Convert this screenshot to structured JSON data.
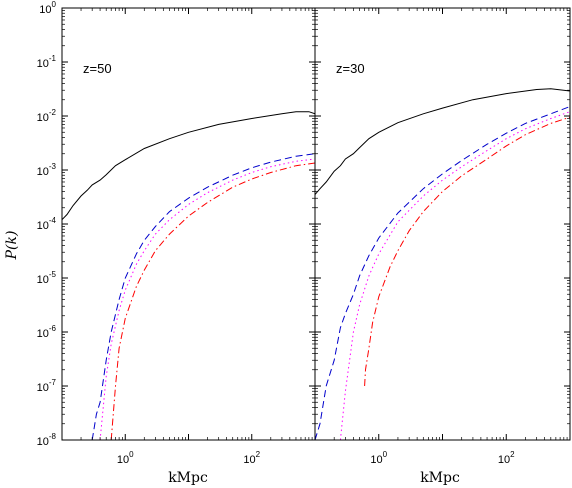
{
  "chart_data": {
    "type": "line",
    "xscale": "log",
    "yscale": "log",
    "xlim": [
      0.1,
      1000
    ],
    "ylim": [
      1e-08,
      1
    ],
    "xlabel": "kMpc",
    "ylabel": "P(k)",
    "x_ticks": [
      {
        "base": "10",
        "exp": "0"
      },
      {
        "base": "10",
        "exp": "2"
      }
    ],
    "y_ticks": [
      {
        "base": "10",
        "exp": "0"
      },
      {
        "base": "10",
        "exp": "-1"
      },
      {
        "base": "10",
        "exp": "-2"
      },
      {
        "base": "10",
        "exp": "-3"
      },
      {
        "base": "10",
        "exp": "-4"
      },
      {
        "base": "10",
        "exp": "-5"
      },
      {
        "base": "10",
        "exp": "-6"
      },
      {
        "base": "10",
        "exp": "-7"
      },
      {
        "base": "10",
        "exp": "-8"
      }
    ],
    "grid": false,
    "panels": [
      {
        "annotation": "z=50",
        "series": [
          {
            "style": "solid",
            "color": "#000000",
            "x": [
              0.1,
              0.12,
              0.15,
              0.2,
              0.25,
              0.3,
              0.4,
              0.5,
              0.7,
              1,
              2,
              5,
              10,
              30,
              100,
              300,
              500,
              800,
              1000
            ],
            "y": [
              0.00012,
              0.00015,
              0.00022,
              0.00033,
              0.00042,
              0.00053,
              0.00065,
              0.00082,
              0.0012,
              0.00155,
              0.0025,
              0.0038,
              0.005,
              0.007,
              0.009,
              0.011,
              0.012,
              0.012,
              0.011
            ]
          },
          {
            "style": "dashed",
            "color": "#0000cc",
            "x": [
              0.3,
              0.35,
              0.4,
              0.5,
              0.6,
              0.8,
              1,
              1.5,
              2,
              3,
              5,
              10,
              20,
              50,
              100,
              200,
              500,
              1000
            ],
            "y": [
              1e-08,
              3e-08,
              5e-08,
              3e-07,
              1e-06,
              4e-06,
              1e-05,
              2.8e-05,
              5e-05,
              9e-05,
              0.00017,
              0.0003,
              0.00048,
              0.0008,
              0.0011,
              0.0014,
              0.0018,
              0.002
            ]
          },
          {
            "style": "dotted",
            "color": "#ff00ff",
            "x": [
              0.4,
              0.5,
              0.6,
              0.8,
              1,
              1.5,
              2,
              3,
              5,
              10,
              20,
              50,
              100,
              200,
              500,
              1000
            ],
            "y": [
              1e-08,
              1.5e-07,
              6e-07,
              2.5e-06,
              6e-06,
              1.8e-05,
              3.2e-05,
              6.5e-05,
              0.00012,
              0.00023,
              0.00038,
              0.00065,
              0.0009,
              0.00115,
              0.00145,
              0.0016
            ]
          },
          {
            "style": "dashdot",
            "color": "#ff0000",
            "x": [
              0.6,
              0.7,
              0.8,
              1,
              1.5,
              2,
              3,
              5,
              10,
              20,
              50,
              100,
              200,
              500,
              1000
            ],
            "y": [
              1e-08,
              1e-07,
              5e-07,
              1.8e-06,
              7e-06,
              1.4e-05,
              3.2e-05,
              6.5e-05,
              0.00014,
              0.00025,
              0.00048,
              0.00068,
              0.0009,
              0.0012,
              0.00135
            ]
          }
        ]
      },
      {
        "annotation": "z=30",
        "series": [
          {
            "style": "solid",
            "color": "#000000",
            "x": [
              0.1,
              0.12,
              0.15,
              0.2,
              0.25,
              0.3,
              0.4,
              0.5,
              0.7,
              1,
              2,
              5,
              10,
              30,
              100,
              300,
              500,
              1000
            ],
            "y": [
              0.00035,
              0.00045,
              0.0006,
              0.00095,
              0.0012,
              0.0016,
              0.002,
              0.0026,
              0.0038,
              0.005,
              0.0075,
              0.011,
              0.014,
              0.02,
              0.026,
              0.031,
              0.032,
              0.029
            ]
          },
          {
            "style": "dashed",
            "color": "#0000cc",
            "x": [
              0.1,
              0.12,
              0.15,
              0.2,
              0.25,
              0.3,
              0.4,
              0.5,
              0.7,
              1,
              2,
              5,
              10,
              20,
              50,
              100,
              200,
              500,
              1000
            ],
            "y": [
              1e-08,
              2e-08,
              1e-07,
              3e-07,
              1.2e-06,
              2.2e-06,
              5e-06,
              1.1e-05,
              2.6e-05,
              5.5e-05,
              0.00016,
              0.00045,
              0.00085,
              0.0015,
              0.003,
              0.0048,
              0.0073,
              0.011,
              0.015
            ]
          },
          {
            "style": "dotted",
            "color": "#ff00ff",
            "x": [
              0.25,
              0.3,
              0.4,
              0.5,
              0.7,
              1,
              2,
              5,
              10,
              20,
              50,
              100,
              200,
              500,
              1000
            ],
            "y": [
              1e-08,
              8e-08,
              1e-06,
              3.2e-06,
              1.1e-05,
              2.8e-05,
              0.00011,
              0.00033,
              0.00065,
              0.00115,
              0.0023,
              0.0038,
              0.0058,
              0.009,
              0.012
            ]
          },
          {
            "style": "dashdot",
            "color": "#ff0000",
            "x": [
              0.6,
              0.62,
              0.7,
              0.8,
              1,
              1.5,
              2,
              3,
              5,
              10,
              20,
              50,
              100,
              200,
              500,
              1000
            ],
            "y": [
              1e-07,
              2e-07,
              5e-07,
              1.5e-06,
              4.5e-06,
              1.6e-05,
              3.2e-05,
              7.5e-05,
              0.00017,
              0.0004,
              0.00078,
              0.0016,
              0.0028,
              0.0045,
              0.0073,
              0.0095
            ]
          }
        ]
      }
    ]
  }
}
